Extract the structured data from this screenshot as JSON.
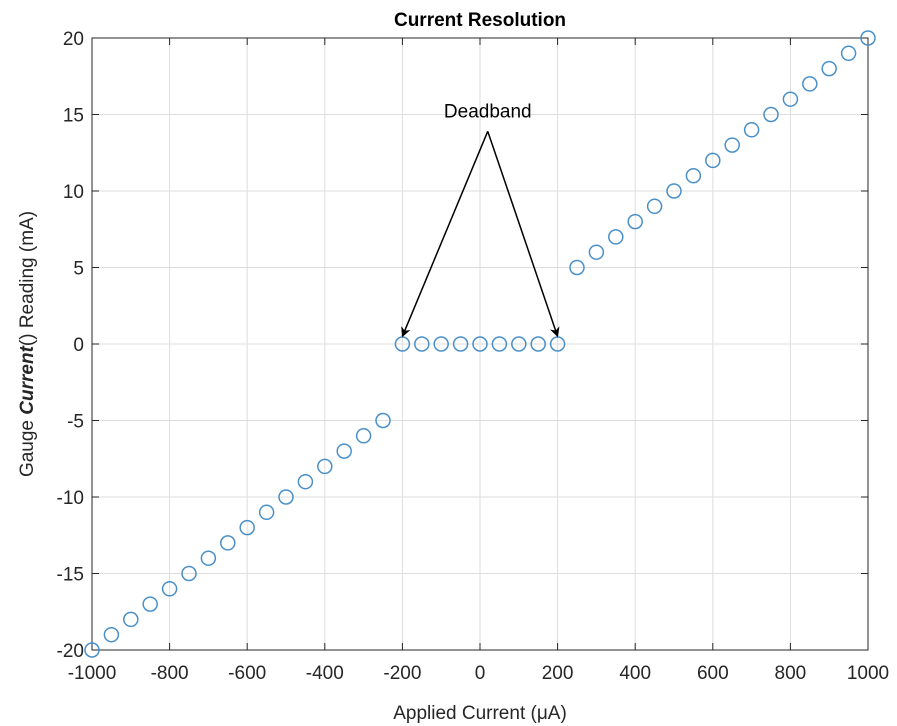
{
  "chart_data": {
    "type": "scatter",
    "title": "Current Resolution",
    "xlabel": "Applied Current (μA)",
    "ylabel_parts": [
      "Gauge ",
      "Current",
      "() Reading (mA)"
    ],
    "xlim": [
      -1000,
      1000
    ],
    "ylim": [
      -20,
      20
    ],
    "xticks": [
      -1000,
      -800,
      -600,
      -400,
      -200,
      0,
      200,
      400,
      600,
      800,
      1000
    ],
    "yticks": [
      -20,
      -15,
      -10,
      -5,
      0,
      5,
      10,
      15,
      20
    ],
    "xtick_labels": [
      "-1000",
      "-800",
      "-600",
      "-400",
      "-200",
      "0",
      "200",
      "400",
      "600",
      "800",
      "1000"
    ],
    "ytick_labels": [
      "-20",
      "-15",
      "-10",
      "-5",
      "0",
      "5",
      "10",
      "15",
      "20"
    ],
    "grid": true,
    "marker": "open-circle",
    "marker_color": "#4a90c8",
    "series": [
      {
        "x": [
          -1000,
          -950,
          -900,
          -850,
          -800,
          -750,
          -700,
          -650,
          -600,
          -550,
          -500,
          -450,
          -400,
          -350,
          -300,
          -250,
          -200,
          -150,
          -100,
          -50,
          0,
          50,
          100,
          150,
          200,
          250,
          300,
          350,
          400,
          450,
          500,
          550,
          600,
          650,
          700,
          750,
          800,
          850,
          900,
          950,
          1000
        ],
        "y": [
          -20,
          -19,
          -18,
          -17,
          -16,
          -15,
          -14,
          -13,
          -12,
          -11,
          -10,
          -9,
          -8,
          -7,
          -6,
          -5,
          0,
          0,
          0,
          0,
          0,
          0,
          0,
          0,
          0,
          5,
          6,
          7,
          8,
          9,
          10,
          11,
          12,
          13,
          14,
          15,
          16,
          17,
          18,
          19,
          20
        ]
      }
    ],
    "annotation": {
      "text": "Deadband",
      "label_at": [
        20,
        14.8
      ],
      "arrow_from": [
        20,
        13.9
      ],
      "arrow_targets": [
        [
          -200,
          0.5
        ],
        [
          200,
          0.5
        ]
      ]
    }
  }
}
